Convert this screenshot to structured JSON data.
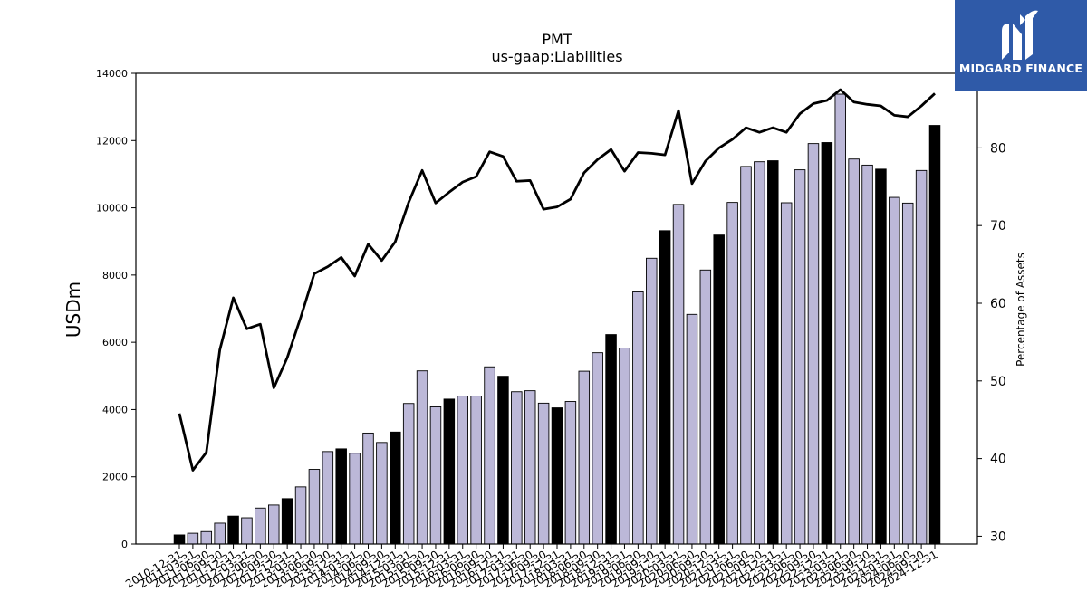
{
  "chart_data": {
    "type": "bar",
    "title": "PMT",
    "subtitle": "us-gaap:Liabilities",
    "ylabel": "USDm",
    "y2label": "Percentage of Assets",
    "ylim": [
      0,
      14000
    ],
    "y2lim": [
      29.0,
      89.6
    ],
    "yticks": [
      0,
      2000,
      4000,
      6000,
      8000,
      10000,
      12000,
      14000
    ],
    "y2ticks": [
      30,
      40,
      50,
      60,
      70,
      80
    ],
    "categories": [
      "2010-12-31",
      "2011-03-31",
      "2011-06-30",
      "2011-09-30",
      "2011-12-31",
      "2012-03-31",
      "2012-06-30",
      "2012-09-30",
      "2012-12-31",
      "2013-03-31",
      "2013-06-30",
      "2013-09-30",
      "2013-12-31",
      "2014-03-31",
      "2014-06-30",
      "2014-09-30",
      "2014-12-31",
      "2015-03-31",
      "2015-06-30",
      "2015-09-30",
      "2015-12-31",
      "2016-03-31",
      "2016-06-30",
      "2016-09-30",
      "2016-12-31",
      "2017-03-31",
      "2017-06-30",
      "2017-09-30",
      "2017-12-31",
      "2018-03-31",
      "2018-06-30",
      "2018-09-30",
      "2018-12-31",
      "2019-03-31",
      "2019-06-30",
      "2019-09-30",
      "2019-12-31",
      "2020-03-31",
      "2020-06-30",
      "2020-09-30",
      "2020-12-31",
      "2021-03-31",
      "2021-06-30",
      "2021-09-30",
      "2021-12-31",
      "2022-03-31",
      "2022-06-30",
      "2022-09-30",
      "2022-12-31",
      "2023-03-31",
      "2023-06-30",
      "2023-09-30",
      "2023-12-31",
      "2024-03-31",
      "2024-06-30",
      "2024-09-30",
      "2024-12-31"
    ],
    "series": [
      {
        "type": "bar",
        "values": [
          270,
          320,
          370,
          620,
          830,
          780,
          1070,
          1160,
          1350,
          1700,
          2220,
          2750,
          2830,
          2700,
          3300,
          3020,
          3330,
          4180,
          5150,
          4080,
          4310,
          4400,
          4400,
          5270,
          4990,
          4530,
          4560,
          4190,
          4050,
          4240,
          5140,
          5690,
          6230,
          5830,
          7500,
          8500,
          9320,
          10100,
          6830,
          8150,
          9190,
          10160,
          11230,
          11370,
          11400,
          10150,
          11130,
          11910,
          11940,
          13380,
          11450,
          11270,
          11150,
          10310,
          10140,
          11110,
          12450
        ],
        "highlight": [
          true,
          false,
          false,
          false,
          true,
          false,
          false,
          false,
          true,
          false,
          false,
          false,
          true,
          false,
          false,
          false,
          true,
          false,
          false,
          false,
          true,
          false,
          false,
          false,
          true,
          false,
          false,
          false,
          true,
          false,
          false,
          false,
          true,
          false,
          false,
          false,
          true,
          false,
          false,
          false,
          true,
          false,
          false,
          false,
          true,
          false,
          false,
          false,
          true,
          false,
          false,
          false,
          true,
          false,
          false,
          false,
          true
        ],
        "color": "#bcb8d8",
        "highlight_color": "#000000"
      },
      {
        "type": "line",
        "axis": "right",
        "values": [
          45.8,
          38.5,
          40.8,
          54.0,
          60.7,
          56.7,
          57.3,
          49.1,
          53.0,
          58.2,
          63.8,
          64.7,
          65.9,
          63.5,
          67.6,
          65.5,
          67.9,
          73.0,
          77.1,
          72.9,
          74.3,
          75.6,
          76.3,
          79.5,
          78.9,
          75.7,
          75.8,
          72.1,
          72.4,
          73.4,
          76.8,
          78.5,
          79.8,
          77.0,
          79.4,
          79.3,
          79.1,
          84.8,
          75.4,
          78.3,
          80.0,
          81.1,
          82.6,
          82.0,
          82.6,
          82.0,
          84.4,
          85.7,
          86.1,
          87.5,
          85.9,
          85.6,
          85.4,
          84.2,
          84.0,
          85.4,
          87.0
        ],
        "color": "#000000"
      }
    ],
    "grid": false,
    "legend": "none"
  },
  "branding": {
    "logo_text": "MIDGARD FINANCE",
    "logo_icon": "midgard-finance-logo-icon",
    "logo_color": "#2f5aa8"
  }
}
